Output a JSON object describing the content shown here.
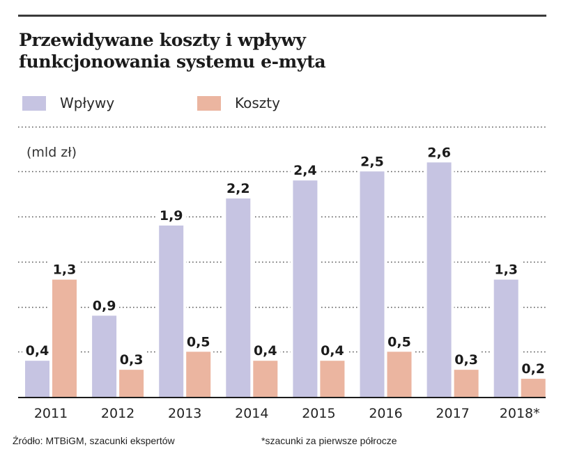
{
  "title_line1": "Przewidywane koszty i wpływy",
  "title_line2": "funkcjonowania systemu e-myta",
  "source": "Źródło: MTBiGM, szacunki ekspertów",
  "footnote": "*szacunki za pierwsze półrocze",
  "chart_data": {
    "type": "bar",
    "title": "Przewidywane koszty i wpływy funkcjonowania systemu e-myta",
    "ylabel": "(mld zł)",
    "xlabel": "",
    "categories": [
      "2011",
      "2012",
      "2013",
      "2014",
      "2015",
      "2016",
      "2017",
      "2018*"
    ],
    "series": [
      {
        "name": "Wpływy",
        "color": "#c6c4e2",
        "values": [
          0.4,
          0.9,
          1.9,
          2.2,
          2.4,
          2.5,
          2.6,
          1.3
        ],
        "labels": [
          "0,4",
          "0,9",
          "1,9",
          "2,2",
          "2,4",
          "2,5",
          "2,6",
          "1,3"
        ]
      },
      {
        "name": "Koszty",
        "color": "#ebb5a0",
        "values": [
          1.3,
          0.3,
          0.5,
          0.4,
          0.4,
          0.5,
          0.3,
          0.2
        ],
        "labels": [
          "1,3",
          "0,3",
          "0,5",
          "0,4",
          "0,4",
          "0,5",
          "0,3",
          "0,2"
        ]
      }
    ],
    "ylim": [
      0,
      3.0
    ],
    "gridlines": [
      0.5,
      1.0,
      1.5,
      2.0,
      2.5,
      3.0
    ],
    "grid": true,
    "grid_style": "dotted",
    "legend_position": "top-left"
  }
}
